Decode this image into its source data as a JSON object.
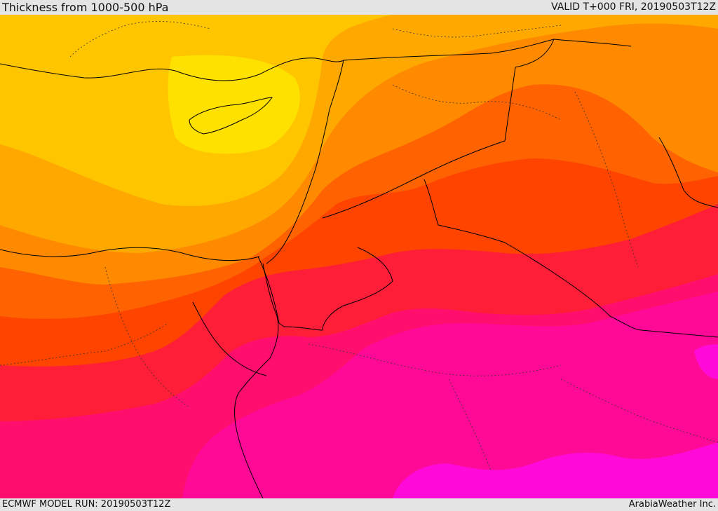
{
  "header": {
    "title": "Thickness from 1000-500 hPa",
    "valid": "VALID T+000 FRI, 20190503T12Z"
  },
  "footer": {
    "model_run": "ECMWF MODEL RUN: 20190503T12Z",
    "credit": "ArabiaWeather Inc."
  },
  "palette": {
    "band1": "#ffe100",
    "band2": "#ffc600",
    "band3": "#ffa800",
    "band4": "#ff8a00",
    "band5": "#ff6200",
    "band6": "#ff4400",
    "band7": "#ff1e38",
    "band8": "#ff0e6e",
    "band9": "#ff0a96",
    "band10": "#ff0ad8",
    "border_color": "#000000"
  }
}
